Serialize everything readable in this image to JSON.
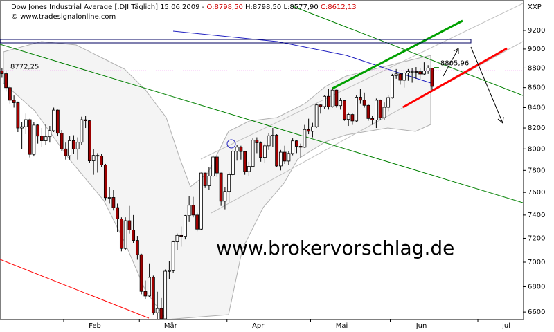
{
  "chart_data": {
    "type": "candlestick",
    "title": "Dow Jones Industrial Average [.DJI  Täglich] 15.06.2009 -",
    "ohlc_header": {
      "open": "O:8798,50",
      "high": "H:8798,50",
      "low": "L:8577,90",
      "close": "C:8612,13"
    },
    "subtitle": "© www.tradesignalonline.com",
    "ylabel": "XXP",
    "watermark": "www.brokervorschlag.de",
    "annotations": [
      {
        "label": "8772,25",
        "value": 8772.25,
        "color": "#e000e0"
      },
      {
        "label": "8805,96",
        "value": 8805.96,
        "color": "#008000"
      }
    ],
    "up_color": "#ffffff",
    "down_color": "#a00000",
    "log_scale": true,
    "grid": false,
    "xlim": [
      -0.5,
      130.8
    ],
    "ylim": [
      6547,
      9536
    ],
    "yticks": [
      6600,
      6800,
      7000,
      7200,
      7400,
      7600,
      7800,
      8000,
      8200,
      8400,
      8600,
      8800,
      9000,
      9200
    ],
    "xticks": [
      {
        "value": 15.5,
        "label": "Feb"
      },
      {
        "value": 34.5,
        "label": "Mär"
      },
      {
        "value": 56.5,
        "label": "Apr"
      },
      {
        "value": 77.5,
        "label": "Mai"
      },
      {
        "value": 97.5,
        "label": "Jun"
      },
      {
        "value": 119.5,
        "label": "Jul"
      }
    ],
    "ohlc": [
      [
        8770,
        8800,
        8700,
        8742
      ],
      [
        8742,
        8770,
        8560,
        8599
      ],
      [
        8599,
        8620,
        8440,
        8473
      ],
      [
        8473,
        8520,
        8400,
        8448
      ],
      [
        8448,
        8460,
        8160,
        8200
      ],
      [
        8200,
        8260,
        8000,
        8212
      ],
      [
        8212,
        8340,
        8140,
        8281
      ],
      [
        8281,
        8290,
        7920,
        7949
      ],
      [
        7949,
        8260,
        7930,
        8228
      ],
      [
        8228,
        8240,
        8050,
        8122
      ],
      [
        8122,
        8200,
        8020,
        8077
      ],
      [
        8077,
        8240,
        8040,
        8116
      ],
      [
        8116,
        8220,
        8060,
        8174
      ],
      [
        8174,
        8400,
        8160,
        8375
      ],
      [
        8375,
        8380,
        8120,
        8149
      ],
      [
        8149,
        8180,
        7980,
        8000
      ],
      [
        8000,
        8060,
        7900,
        7936
      ],
      [
        7936,
        8120,
        7900,
        8078
      ],
      [
        8078,
        8130,
        7950,
        8000
      ],
      [
        8000,
        8110,
        7900,
        8063
      ],
      [
        8063,
        8310,
        8040,
        8280
      ],
      [
        8280,
        8320,
        8200,
        8270
      ],
      [
        8270,
        8280,
        7870,
        7888
      ],
      [
        7888,
        8000,
        7760,
        7939
      ],
      [
        7939,
        7960,
        7780,
        7933
      ],
      [
        7933,
        7950,
        7830,
        7850
      ],
      [
        7850,
        7860,
        7530,
        7553
      ],
      [
        7553,
        7650,
        7500,
        7555
      ],
      [
        7555,
        7620,
        7440,
        7465
      ],
      [
        7465,
        7500,
        7250,
        7366
      ],
      [
        7366,
        7380,
        7090,
        7114
      ],
      [
        7114,
        7380,
        7100,
        7351
      ],
      [
        7351,
        7480,
        7240,
        7270
      ],
      [
        7270,
        7400,
        7160,
        7182
      ],
      [
        7182,
        7220,
        7020,
        7062
      ],
      [
        7062,
        7070,
        6740,
        6763
      ],
      [
        6763,
        6850,
        6700,
        6726
      ],
      [
        6726,
        6990,
        6720,
        6876
      ],
      [
        6876,
        6890,
        6580,
        6594
      ],
      [
        6594,
        6760,
        6470,
        6627
      ],
      [
        6627,
        6710,
        6520,
        6547
      ],
      [
        6547,
        6940,
        6540,
        6926
      ],
      [
        6926,
        7010,
        6860,
        6930
      ],
      [
        6930,
        7180,
        6910,
        7170
      ],
      [
        7170,
        7240,
        7100,
        7224
      ],
      [
        7224,
        7300,
        7130,
        7217
      ],
      [
        7217,
        7400,
        7190,
        7395
      ],
      [
        7395,
        7570,
        7340,
        7486
      ],
      [
        7486,
        7560,
        7380,
        7400
      ],
      [
        7400,
        7420,
        7260,
        7278
      ],
      [
        7278,
        7780,
        7270,
        7776
      ],
      [
        7776,
        7780,
        7640,
        7660
      ],
      [
        7660,
        7830,
        7620,
        7749
      ],
      [
        7749,
        7940,
        7740,
        7924
      ],
      [
        7924,
        7930,
        7740,
        7776
      ],
      [
        7776,
        7780,
        7480,
        7522
      ],
      [
        7522,
        7650,
        7450,
        7609
      ],
      [
        7609,
        7780,
        7510,
        7761
      ],
      [
        7761,
        7990,
        7750,
        7978
      ],
      [
        7978,
        8040,
        7890,
        8017
      ],
      [
        8017,
        8030,
        7900,
        7975
      ],
      [
        7975,
        7980,
        7760,
        7789
      ],
      [
        7789,
        7880,
        7750,
        7837
      ],
      [
        7837,
        8100,
        7830,
        8083
      ],
      [
        8083,
        8110,
        7960,
        8057
      ],
      [
        8057,
        8070,
        7880,
        7920
      ],
      [
        7920,
        8050,
        7870,
        8029
      ],
      [
        8029,
        8150,
        7990,
        8125
      ],
      [
        8125,
        8200,
        8020,
        8131
      ],
      [
        8131,
        8140,
        7830,
        7841
      ],
      [
        7841,
        7990,
        7800,
        7969
      ],
      [
        7969,
        8030,
        7860,
        7886
      ],
      [
        7886,
        7980,
        7850,
        7957
      ],
      [
        7957,
        8100,
        7940,
        8076
      ],
      [
        8076,
        8080,
        7960,
        8025
      ],
      [
        8025,
        8050,
        7920,
        8016
      ],
      [
        8016,
        8230,
        8010,
        8185
      ],
      [
        8185,
        8290,
        8140,
        8168
      ],
      [
        8168,
        8250,
        8110,
        8212
      ],
      [
        8212,
        8440,
        8200,
        8426
      ],
      [
        8426,
        8430,
        8340,
        8410
      ],
      [
        8410,
        8520,
        8390,
        8512
      ],
      [
        8512,
        8590,
        8380,
        8409
      ],
      [
        8409,
        8590,
        8400,
        8575
      ],
      [
        8575,
        8580,
        8400,
        8419
      ],
      [
        8419,
        8500,
        8380,
        8469
      ],
      [
        8469,
        8470,
        8270,
        8284
      ],
      [
        8284,
        8350,
        8220,
        8331
      ],
      [
        8331,
        8340,
        8230,
        8268
      ],
      [
        8268,
        8520,
        8260,
        8504
      ],
      [
        8504,
        8590,
        8440,
        8474
      ],
      [
        8474,
        8550,
        8400,
        8422
      ],
      [
        8422,
        8430,
        8270,
        8292
      ],
      [
        8292,
        8320,
        8230,
        8277
      ],
      [
        8277,
        8490,
        8200,
        8473
      ],
      [
        8473,
        8480,
        8280,
        8300
      ],
      [
        8300,
        8450,
        8280,
        8403
      ],
      [
        8403,
        8520,
        8360,
        8500
      ],
      [
        8500,
        8740,
        8490,
        8721
      ],
      [
        8721,
        8790,
        8690,
        8740
      ],
      [
        8740,
        8750,
        8630,
        8675
      ],
      [
        8675,
        8760,
        8600,
        8750
      ],
      [
        8750,
        8790,
        8670,
        8764
      ],
      [
        8764,
        8800,
        8650,
        8764
      ],
      [
        8764,
        8810,
        8690,
        8763
      ],
      [
        8763,
        8800,
        8690,
        8739
      ],
      [
        8739,
        8860,
        8730,
        8770
      ],
      [
        8770,
        8830,
        8740,
        8799
      ],
      [
        8798.5,
        8798.5,
        8577.9,
        8612.13
      ]
    ]
  }
}
